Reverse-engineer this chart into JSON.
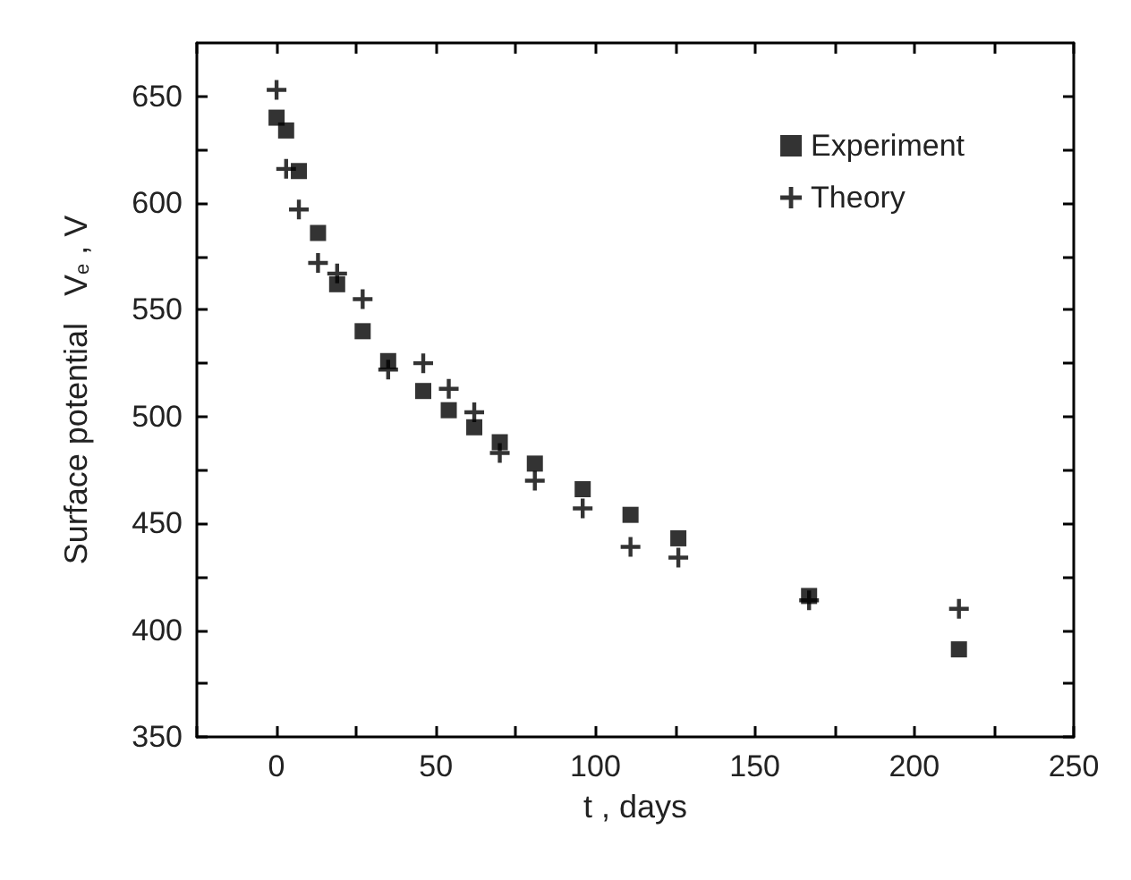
{
  "chart_data": {
    "type": "scatter",
    "xlabel": "t , days",
    "ylabel": "Surface potential   V$_{e}$ , V",
    "series": [
      {
        "name": "Experiment",
        "color": "#000000",
        "marker": "square",
        "x": [
          0,
          3,
          7,
          13,
          19,
          27,
          35,
          46,
          54,
          62,
          70,
          81,
          96,
          111,
          126,
          167,
          214
        ],
        "values": [
          640,
          634,
          615,
          586,
          562,
          540,
          526,
          512,
          503,
          495,
          488,
          478,
          466,
          454,
          443,
          416,
          391
        ]
      },
      {
        "name": "Theory",
        "color": "#000000",
        "marker": "cross",
        "x": [
          0,
          3,
          7,
          13,
          19,
          27,
          35,
          46,
          54,
          62,
          70,
          81,
          96,
          111,
          126,
          167,
          214
        ],
        "values": [
          653,
          616,
          597,
          572,
          567,
          555,
          522,
          525,
          513,
          502,
          483,
          470,
          457,
          439,
          434,
          414,
          410
        ]
      }
    ],
    "xlim": [
      -25,
      250
    ],
    "ylim": [
      350,
      675
    ],
    "xticks": [
      {
        "value": -25,
        "label": null
      },
      0,
      {
        "value": 25,
        "label": null
      },
      50,
      {
        "value": 75,
        "label": null
      },
      100,
      {
        "value": 125,
        "label": null
      },
      150,
      {
        "value": 175,
        "label": null
      },
      200,
      {
        "value": 225,
        "label": null
      },
      250
    ],
    "yticks": [
      350,
      {
        "value": 375,
        "label": null
      },
      400,
      {
        "value": 425,
        "label": null
      },
      450,
      {
        "value": 475,
        "label": null
      },
      500,
      {
        "value": 525,
        "label": null
      },
      550,
      {
        "value": 575,
        "label": null
      },
      600,
      {
        "value": 625,
        "label": null
      },
      650
    ],
    "legend": "top right",
    "grid": false
  }
}
